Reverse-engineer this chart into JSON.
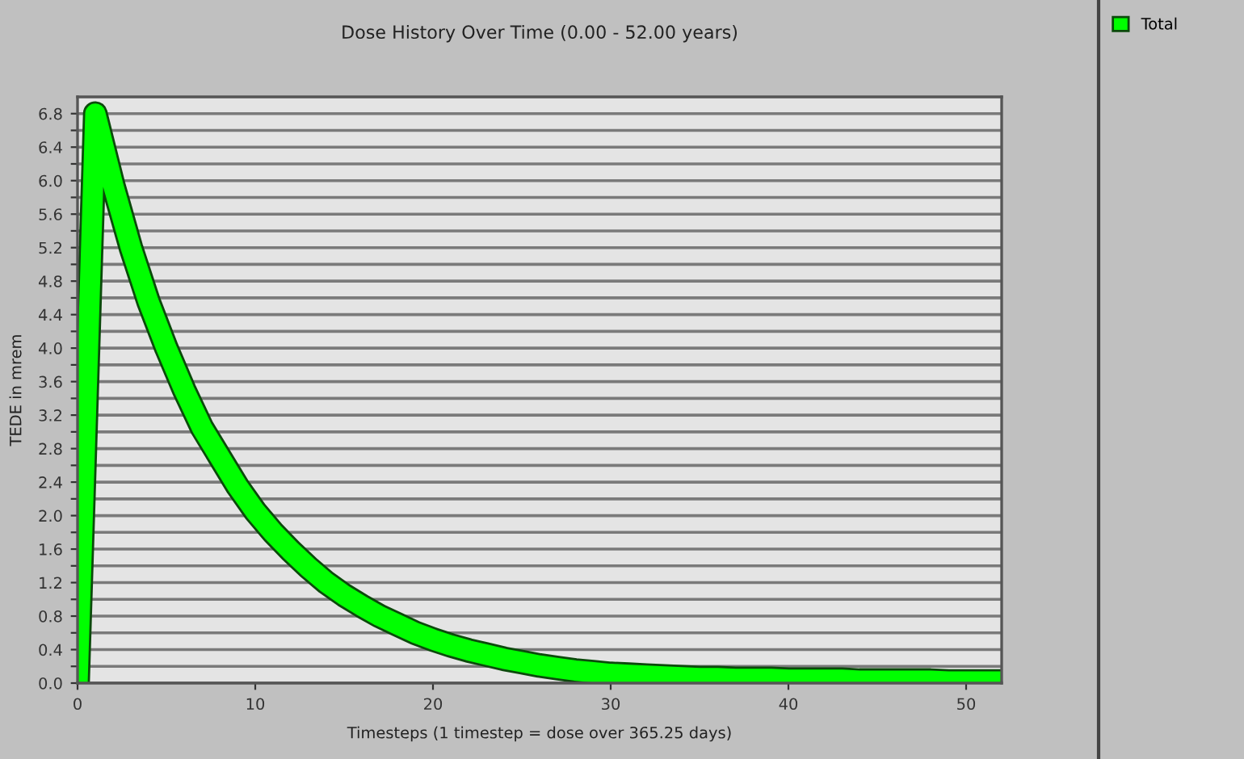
{
  "chart_data": {
    "type": "line",
    "title": "Dose History Over Time (0.00 - 52.00 years)",
    "xlabel": "Timesteps (1 timestep = dose over 365.25 days)",
    "ylabel": "TEDE in mrem",
    "x": [
      0,
      1,
      2,
      3,
      4,
      5,
      6,
      7,
      8,
      9,
      10,
      11,
      12,
      13,
      14,
      15,
      16,
      17,
      18,
      19,
      20,
      21,
      22,
      23,
      24,
      25,
      26,
      27,
      28,
      29,
      30,
      31,
      32,
      33,
      34,
      35,
      36,
      37,
      38,
      39,
      40,
      41,
      42,
      43,
      44,
      45,
      46,
      47,
      48,
      49,
      50,
      51,
      52
    ],
    "series": [
      {
        "name": "Total",
        "color": "#00ff00",
        "values": [
          0,
          6.8,
          5.95,
          5.2,
          4.55,
          4.0,
          3.5,
          3.05,
          2.7,
          2.35,
          2.05,
          1.8,
          1.58,
          1.38,
          1.2,
          1.05,
          0.92,
          0.8,
          0.7,
          0.6,
          0.52,
          0.45,
          0.39,
          0.34,
          0.29,
          0.25,
          0.21,
          0.18,
          0.15,
          0.13,
          0.11,
          0.1,
          0.09,
          0.08,
          0.07,
          0.06,
          0.06,
          0.05,
          0.05,
          0.05,
          0.04,
          0.04,
          0.04,
          0.04,
          0.03,
          0.03,
          0.03,
          0.03,
          0.03,
          0.02,
          0.02,
          0.02,
          0.02
        ]
      }
    ],
    "xlim": [
      0,
      52
    ],
    "xticks": [
      0,
      10,
      20,
      30,
      40,
      50
    ],
    "ylim": [
      0,
      7.0
    ],
    "yticks": [
      {
        "value": 0,
        "label": "0.0"
      },
      {
        "value": 0.2,
        "label": null
      },
      {
        "value": 0.4,
        "label": "0.4"
      },
      {
        "value": 0.6,
        "label": null
      },
      {
        "value": 0.8,
        "label": "0.8"
      },
      {
        "value": 1.0,
        "label": null
      },
      {
        "value": 1.2,
        "label": "1.2"
      },
      {
        "value": 1.4,
        "label": null
      },
      {
        "value": 1.6,
        "label": "1.6"
      },
      {
        "value": 1.8,
        "label": null
      },
      {
        "value": 2.0,
        "label": "2.0"
      },
      {
        "value": 2.2,
        "label": null
      },
      {
        "value": 2.4,
        "label": "2.4"
      },
      {
        "value": 2.6,
        "label": null
      },
      {
        "value": 2.8,
        "label": "2.8"
      },
      {
        "value": 3.0,
        "label": null
      },
      {
        "value": 3.2,
        "label": "3.2"
      },
      {
        "value": 3.4,
        "label": null
      },
      {
        "value": 3.6,
        "label": "3.6"
      },
      {
        "value": 3.8,
        "label": null
      },
      {
        "value": 4.0,
        "label": "4.0"
      },
      {
        "value": 4.2,
        "label": null
      },
      {
        "value": 4.4,
        "label": "4.4"
      },
      {
        "value": 4.6,
        "label": null
      },
      {
        "value": 4.8,
        "label": "4.8"
      },
      {
        "value": 5.0,
        "label": null
      },
      {
        "value": 5.2,
        "label": "5.2"
      },
      {
        "value": 5.4,
        "label": null
      },
      {
        "value": 5.6,
        "label": "5.6"
      },
      {
        "value": 5.8,
        "label": null
      },
      {
        "value": 6.0,
        "label": "6.0"
      },
      {
        "value": 6.2,
        "label": null
      },
      {
        "value": 6.4,
        "label": "6.4"
      },
      {
        "value": 6.6,
        "label": null
      },
      {
        "value": 6.8,
        "label": "6.8"
      }
    ],
    "grid": "y",
    "legend": "top right",
    "marker": "none",
    "line_style": "solid"
  }
}
